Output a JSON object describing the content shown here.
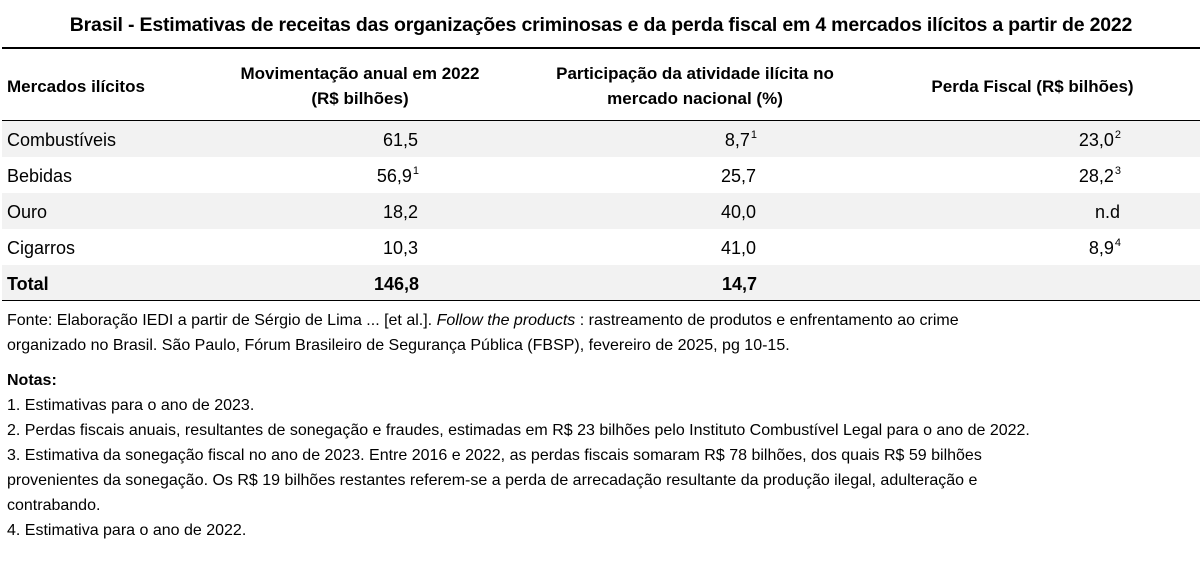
{
  "title": "Brasil - Estimativas de receitas das organizações criminosas e da perda fiscal em 4 mercados ilícitos a partir de 2022",
  "headers": {
    "col1": "Mercados ilícitos",
    "col2_line1": "Movimentação anual em 2022",
    "col2_line2": "(R$  bilhões)",
    "col3_line1": "Participação da atividade ilícita no",
    "col3_line2": "mercado nacional (%)",
    "col4": "Perda Fiscal (R$  bilhões)"
  },
  "rows": [
    {
      "market": "Combustíveis",
      "movimentacao": "61,5",
      "mov_note": "",
      "participacao": "8,7",
      "part_note": "1",
      "perda": "23,0",
      "perda_note": "2"
    },
    {
      "market": "Bebidas",
      "movimentacao": "56,9",
      "mov_note": "1",
      "participacao": "25,7",
      "part_note": "",
      "perda": "28,2",
      "perda_note": "3"
    },
    {
      "market": "Ouro",
      "movimentacao": "18,2",
      "mov_note": "",
      "participacao": "40,0",
      "part_note": "",
      "perda": "n.d",
      "perda_note": ""
    },
    {
      "market": "Cigarros",
      "movimentacao": "10,3",
      "mov_note": "",
      "participacao": "41,0",
      "part_note": "",
      "perda": "8,9",
      "perda_note": "4"
    }
  ],
  "total": {
    "label": "Total",
    "movimentacao": "146,8",
    "participacao": "14,7",
    "perda": ""
  },
  "source": {
    "prefix": "Fonte: Elaboração IEDI a partir de Sérgio de Lima ... [et al.]. ",
    "italic": "Follow the products",
    "suffix": " : rastreamento de produtos e enfrentamento ao crime",
    "line2": "organizado no Brasil. São Paulo, Fórum Brasileiro de Segurança Pública (FBSP), fevereiro de 2025, pg 10-15."
  },
  "notes": {
    "heading": "Notas:",
    "n1": "1. Estimativas para o ano de 2023.",
    "n2": "2. Perdas fiscais anuais, resultantes de sonegação e fraudes, estimadas em R$ 23 bilhões pelo Instituto Combustível Legal  para o ano de 2022.",
    "n3_line1": "3. Estimativa da sonegação fiscal no ano de 2023. Entre 2016 e 2022, as perdas fiscais somaram R$ 78 bilhões, dos quais R$ 59 bilhões",
    "n3_line2": "provenientes da sonegação. Os  R$ 19 bilhões restantes  referem-se a perda de arrecadação resultante da produção ilegal, adulteração e",
    "n3_line3": "contrabando.",
    "n4": "4. Estimativa para o ano  de 2022."
  }
}
